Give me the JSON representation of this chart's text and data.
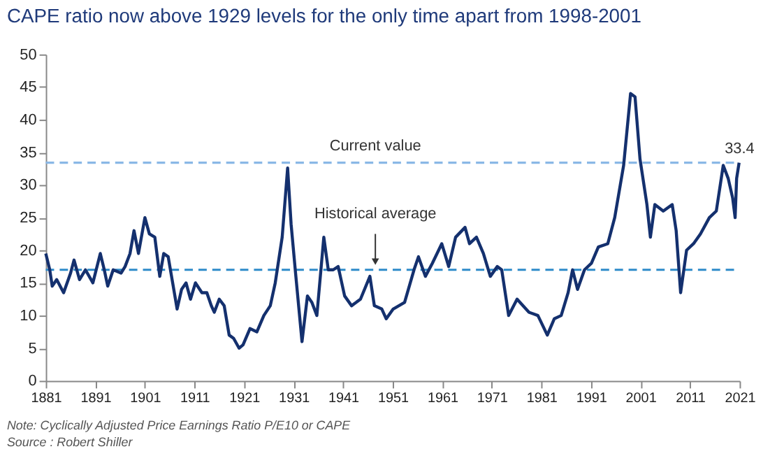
{
  "chart_data": {
    "type": "line",
    "title": "CAPE ratio now above 1929 levels for the only time apart from 1998-2001",
    "x": [
      1881,
      1881.8,
      1882.3,
      1883.2,
      1884.6,
      1886,
      1886.7,
      1887.8,
      1889,
      1890.5,
      1892,
      1892.8,
      1893.5,
      1894.6,
      1896.2,
      1897,
      1898,
      1898.8,
      1899.7,
      1901,
      1901.9,
      1903,
      1904,
      1904.8,
      1905.7,
      1906.6,
      1907.5,
      1908.4,
      1909.3,
      1910.2,
      1911.2,
      1912.5,
      1913.5,
      1914.4,
      1915,
      1916,
      1917,
      1918,
      1918.9,
      1920,
      1920.8,
      1922.2,
      1923.6,
      1925,
      1926.3,
      1927.3,
      1928.7,
      1929.8,
      1930.5,
      1931.4,
      1932.7,
      1933.8,
      1934.7,
      1935.7,
      1937.1,
      1938,
      1939,
      1940,
      1941.3,
      1942.7,
      1944.5,
      1946.4,
      1947.3,
      1948.8,
      1949.7,
      1951.1,
      1953.4,
      1955.3,
      1956.2,
      1957.6,
      1959,
      1960.9,
      1962.3,
      1963.7,
      1965.6,
      1966.5,
      1967.9,
      1969.3,
      1970.7,
      1972.1,
      1973,
      1974.4,
      1976.1,
      1978.5,
      1980.3,
      1982.2,
      1983.6,
      1985,
      1986.4,
      1987.3,
      1988.3,
      1989.7,
      1991.1,
      1992.5,
      1994.4,
      1995.8,
      1997.6,
      1999,
      1999.9,
      2000.9,
      2002.3,
      2003,
      2003.9,
      2005.6,
      2007.4,
      2008.2,
      2009.1,
      2010.3,
      2011.7,
      2013.1,
      2014.9,
      2016.3,
      2017.7,
      2018.7,
      2019.6,
      2020.1,
      2020.4,
      2020.9
    ],
    "series": [
      {
        "color": "#14306e",
        "values": [
          19.5,
          17,
          14.5,
          15.5,
          13.5,
          16.5,
          18.5,
          15.5,
          17,
          15,
          19.5,
          17,
          14.5,
          17,
          16.5,
          17.5,
          19.5,
          23,
          19.5,
          25,
          22.5,
          22,
          16,
          19.5,
          19,
          15,
          11,
          14,
          15,
          12.5,
          15,
          13.5,
          13.5,
          11.5,
          10.5,
          12.5,
          11.5,
          7,
          6.5,
          5,
          5.5,
          8,
          7.5,
          10,
          11.5,
          15,
          22,
          32.6,
          24,
          16.5,
          6,
          13,
          12,
          10,
          22,
          17,
          17,
          17.5,
          13,
          11.5,
          12.5,
          16,
          11.5,
          11,
          9.5,
          11,
          12,
          17,
          19,
          16,
          18,
          21,
          17.5,
          22,
          23.5,
          21,
          22,
          19.5,
          16,
          17.5,
          17,
          10,
          12.5,
          10.5,
          10,
          7,
          9.5,
          10,
          13.5,
          17,
          14,
          17,
          18,
          20.5,
          21,
          25,
          33,
          44,
          43.5,
          34,
          27,
          22,
          27,
          26,
          27,
          23,
          13.5,
          20,
          21,
          22.5,
          25,
          26,
          33,
          31,
          28,
          25,
          31,
          33.4
        ]
      }
    ],
    "xlim": [
      1881,
      2021
    ],
    "xticks": [
      1881,
      1891,
      1901,
      1911,
      1921,
      1931,
      1941,
      1951,
      1961,
      1971,
      1981,
      1991,
      2001,
      2011,
      2021
    ],
    "ylim": [
      0,
      50
    ],
    "yticks": [
      0,
      5,
      10,
      15,
      20,
      25,
      30,
      35,
      40,
      45,
      50
    ],
    "grid": false,
    "line_style": "solid",
    "ref_lines": [
      {
        "axis": "y",
        "value": 33.4,
        "label": "Current value",
        "color": "#8ab8e6",
        "line_style": "dashed"
      },
      {
        "axis": "y",
        "value": 17,
        "label": "Historical average",
        "color": "#2e8bc9",
        "line_style": "dashed"
      }
    ],
    "annotations": [
      {
        "text": "33.4",
        "x": 2021,
        "y": 33.4
      },
      "Note: Cyclically Adjusted Price Earnings Ratio P/E10 or CAPE",
      "Source : Robert Shiller"
    ]
  }
}
